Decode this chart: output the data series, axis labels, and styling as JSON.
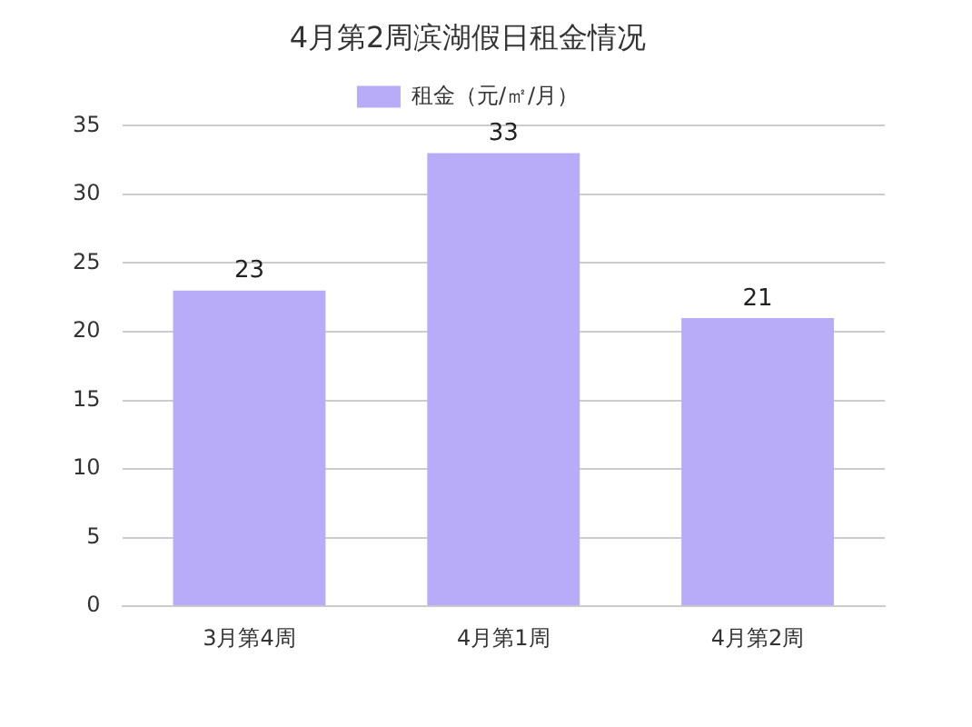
{
  "chart_data": {
    "type": "bar",
    "title": "4月第2周滨湖假日租金情况",
    "categories": [
      "3月第4周",
      "4月第1周",
      "4月第2周"
    ],
    "series": [
      {
        "name": "租金（元/㎡/月）",
        "color": "#b8acf8",
        "values": [
          23,
          33,
          21
        ]
      }
    ],
    "ylim": [
      0,
      35
    ],
    "yticks": [
      0,
      5,
      10,
      15,
      20,
      25,
      30,
      35
    ],
    "grid": "y",
    "legend": "top",
    "data_labels": true
  }
}
